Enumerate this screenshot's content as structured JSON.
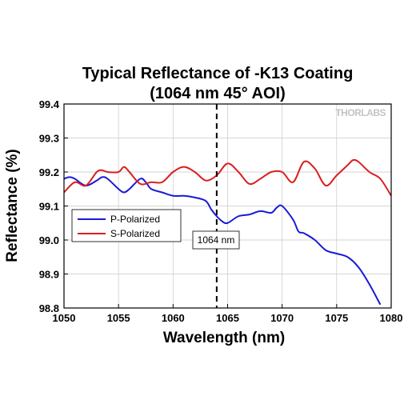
{
  "chart_data": {
    "type": "line",
    "title": "Typical Reflectance of -K13 Coating",
    "subtitle": "(1064 nm 45° AOI)",
    "xlabel": "Wavelength (nm)",
    "ylabel": "Reflectance (%)",
    "xlim": [
      1050,
      1080
    ],
    "ylim": [
      98.8,
      99.4
    ],
    "xticks": [
      "1050",
      "1055",
      "1060",
      "1065",
      "1070",
      "1075",
      "1080"
    ],
    "yticks": [
      "98.8",
      "98.9",
      "99.0",
      "99.1",
      "99.2",
      "99.3",
      "99.4"
    ],
    "grid": true,
    "legend_position": "middle-left",
    "watermark": "THORLABS",
    "annotation": {
      "text": "1064 nm",
      "x": 1064
    },
    "colors": {
      "p": "#1a1ad6",
      "s": "#d91f1f",
      "marker": "#000000"
    },
    "series": [
      {
        "name": "P-Polarized",
        "color": "#1a1ad6",
        "x": [
          1050,
          1050.5,
          1051,
          1052,
          1053,
          1053.5,
          1054,
          1055,
          1055.5,
          1056,
          1057,
          1057.5,
          1058,
          1059,
          1060,
          1061,
          1062,
          1063,
          1063.5,
          1064,
          1064.5,
          1065,
          1066,
          1067,
          1068,
          1069,
          1069.5,
          1070,
          1071,
          1071.5,
          1072,
          1073,
          1074,
          1075,
          1076,
          1077,
          1078,
          1079
        ],
        "y": [
          99.18,
          99.185,
          99.18,
          99.16,
          99.175,
          99.185,
          99.18,
          99.15,
          99.14,
          99.15,
          99.18,
          99.17,
          99.15,
          99.14,
          99.13,
          99.13,
          99.125,
          99.115,
          99.09,
          99.07,
          99.055,
          99.05,
          99.07,
          99.075,
          99.085,
          99.08,
          99.095,
          99.1,
          99.06,
          99.025,
          99.02,
          99.0,
          98.97,
          98.96,
          98.95,
          98.92,
          98.87,
          98.81
        ]
      },
      {
        "name": "S-Polarized",
        "color": "#d91f1f",
        "x": [
          1050,
          1051,
          1052,
          1053,
          1053.5,
          1054,
          1055,
          1055.5,
          1056,
          1057,
          1058,
          1059,
          1060,
          1061,
          1062,
          1063,
          1064,
          1065,
          1066,
          1067,
          1068,
          1069,
          1070,
          1071,
          1072,
          1073,
          1074,
          1075,
          1076,
          1076.5,
          1077,
          1078,
          1079,
          1080
        ],
        "y": [
          99.14,
          99.17,
          99.16,
          99.2,
          99.205,
          99.2,
          99.2,
          99.215,
          99.2,
          99.165,
          99.17,
          99.17,
          99.2,
          99.215,
          99.2,
          99.175,
          99.19,
          99.225,
          99.2,
          99.165,
          99.18,
          99.2,
          99.2,
          99.17,
          99.23,
          99.21,
          99.16,
          99.19,
          99.22,
          99.235,
          99.23,
          99.2,
          99.18,
          99.13
        ]
      }
    ]
  }
}
